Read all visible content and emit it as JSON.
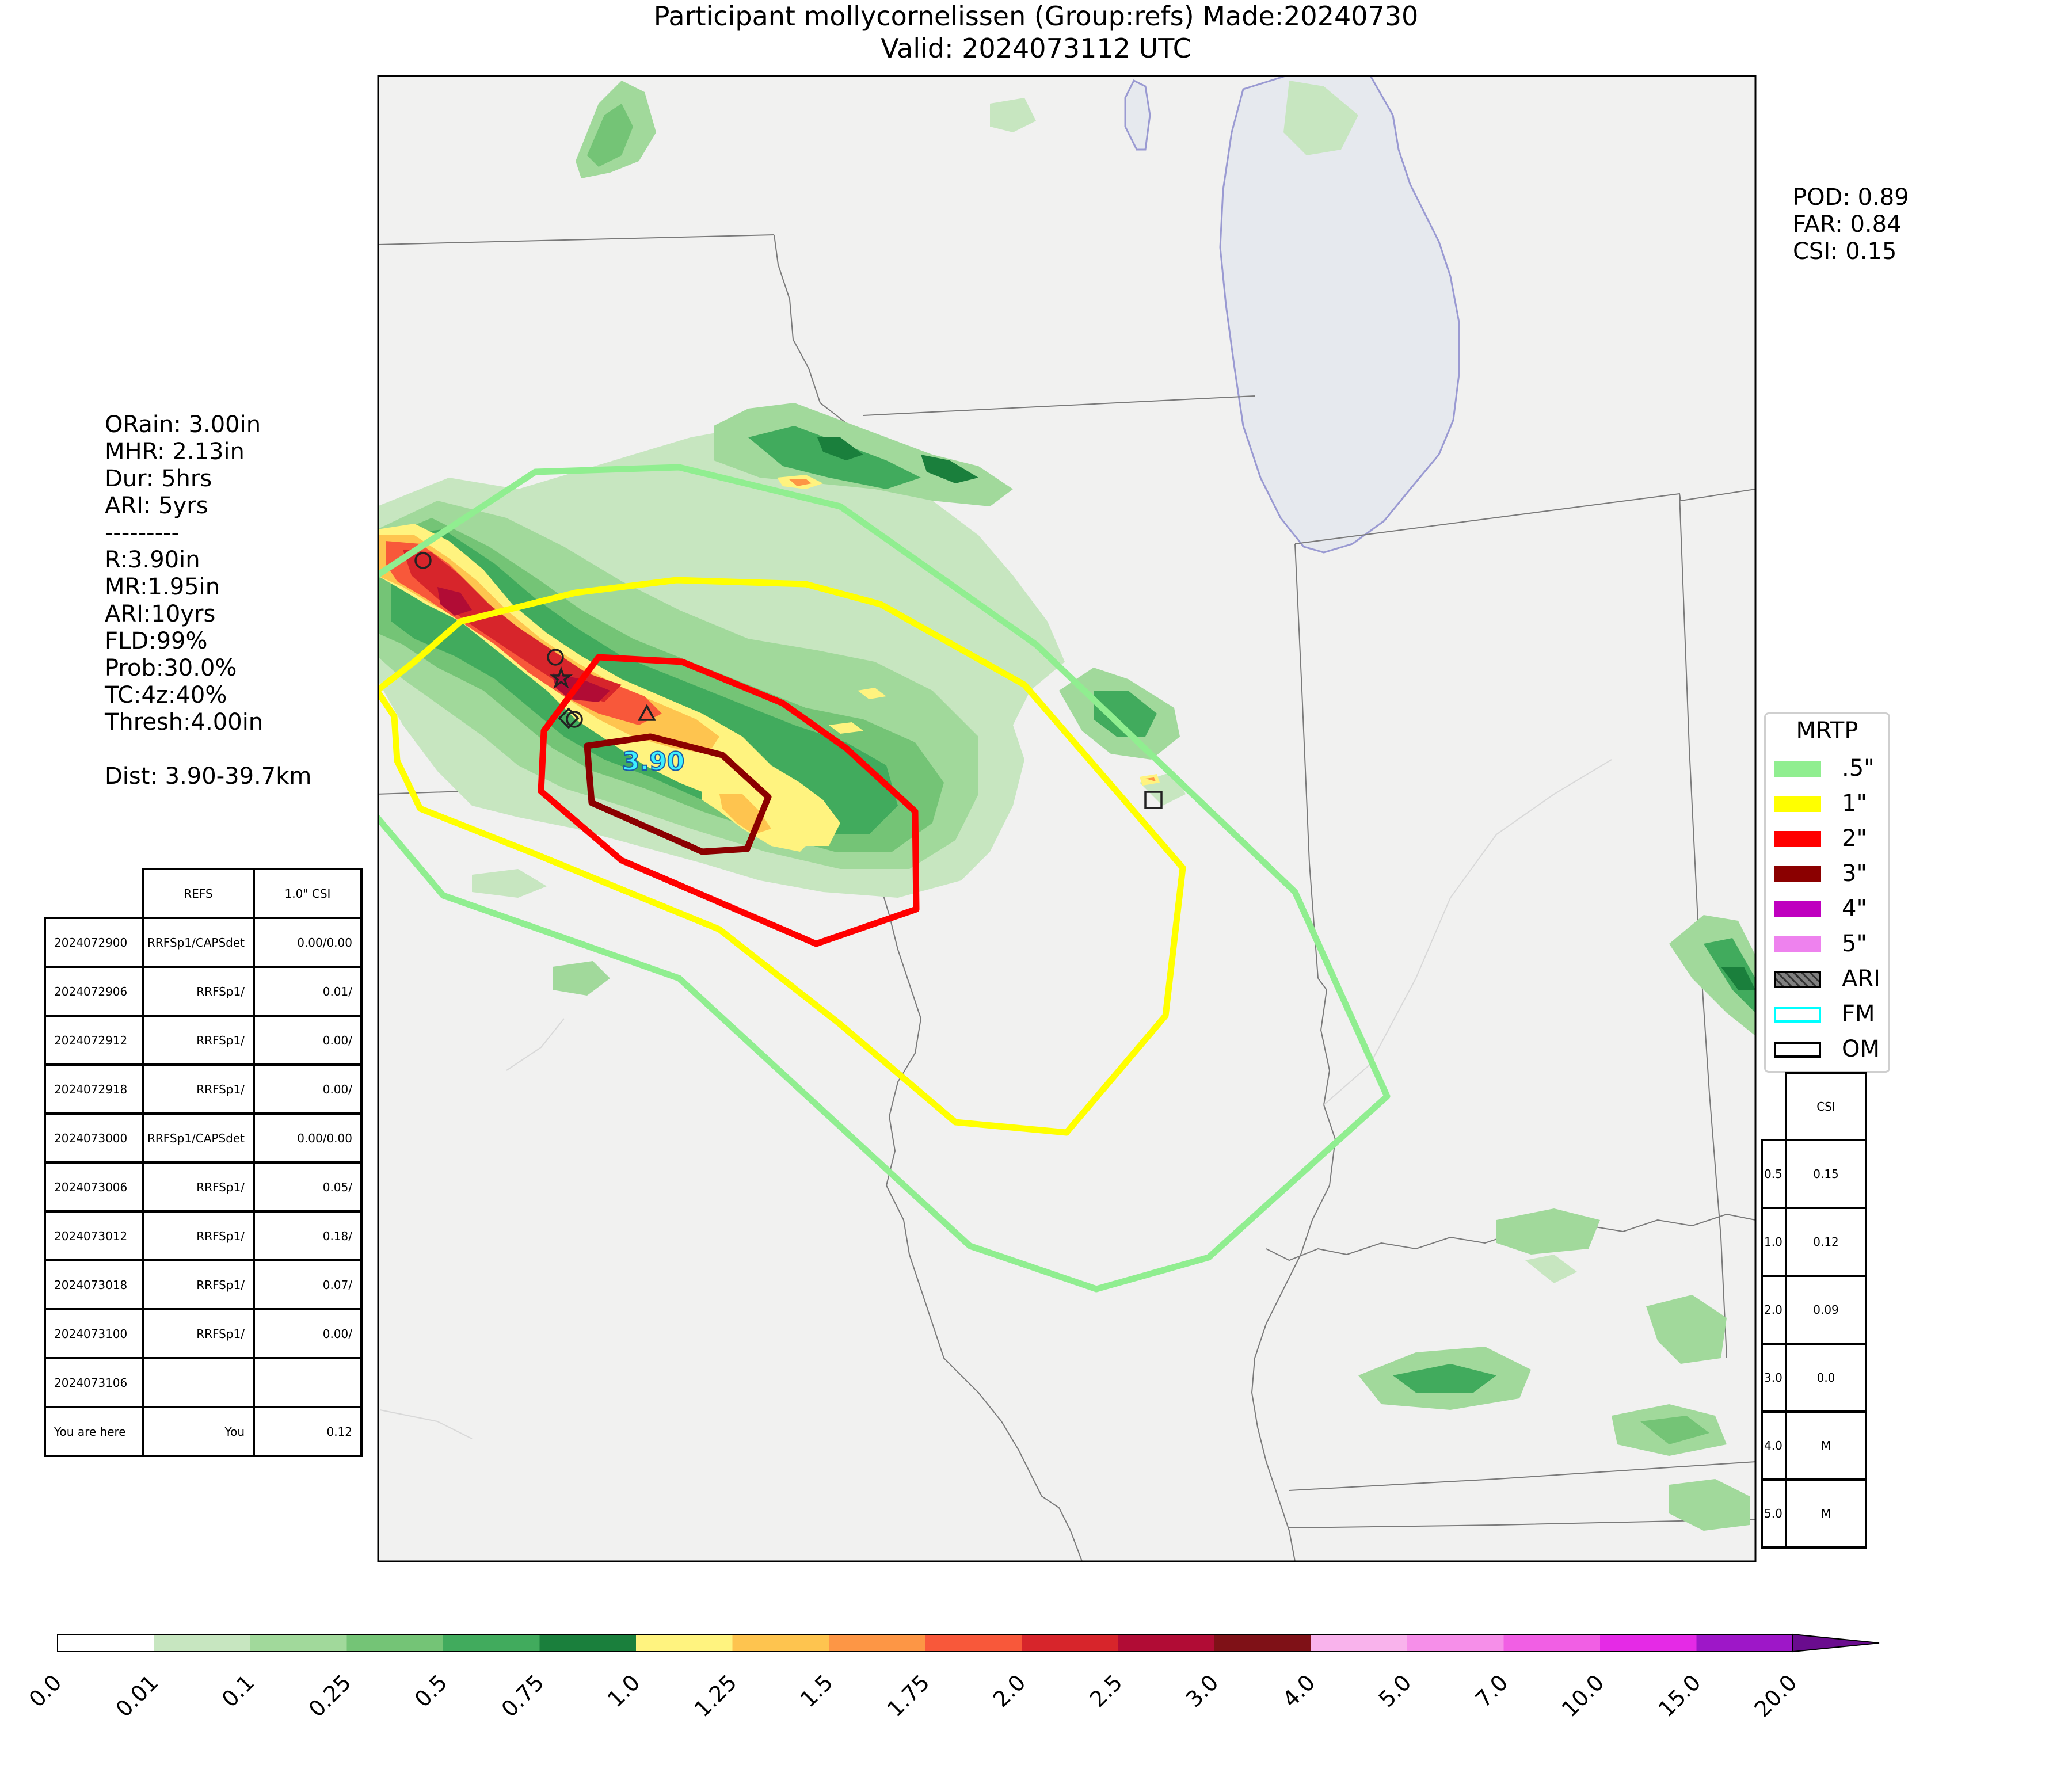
{
  "title": {
    "line1": "Participant mollycornelissen (Group:refs) Made:20240730",
    "line2": "Valid: 2024073112 UTC"
  },
  "scores": {
    "pod": "POD: 0.89",
    "far": "FAR: 0.84",
    "csi": "CSI: 0.15"
  },
  "info": [
    "ORain: 3.00in",
    "MHR: 2.13in",
    "Dur: 5hrs",
    "ARI: 5yrs",
    "---------",
    "R:3.90in",
    "MR:1.95in",
    "ARI:10yrs",
    "FLD:99%",
    "Prob:30.0%",
    "TC:4z:40%",
    "Thresh:4.00in",
    "",
    "Dist: 3.90-39.7km"
  ],
  "runs_table": {
    "header": [
      "REFS",
      "1.0\" CSI"
    ],
    "rows": [
      [
        "2024072900",
        "RRFSp1/CAPSdet",
        "0.00/0.00"
      ],
      [
        "2024072906",
        "RRFSp1/",
        "0.01/"
      ],
      [
        "2024072912",
        "RRFSp1/",
        "0.00/"
      ],
      [
        "2024072918",
        "RRFSp1/",
        "0.00/"
      ],
      [
        "2024073000",
        "RRFSp1/CAPSdet",
        "0.00/0.00"
      ],
      [
        "2024073006",
        "RRFSp1/",
        "0.05/"
      ],
      [
        "2024073012",
        "RRFSp1/",
        "0.18/"
      ],
      [
        "2024073018",
        "RRFSp1/",
        "0.07/"
      ],
      [
        "2024073100",
        "RRFSp1/",
        "0.00/"
      ],
      [
        "2024073106",
        "",
        ""
      ],
      [
        "You are here",
        "You",
        "0.12"
      ]
    ]
  },
  "csi_table": {
    "header": "CSI",
    "rows": [
      [
        "0.5",
        "0.15"
      ],
      [
        "1.0",
        "0.12"
      ],
      [
        "2.0",
        "0.09"
      ],
      [
        "3.0",
        "0.0"
      ],
      [
        "4.0",
        "M"
      ],
      [
        "5.0",
        "M"
      ]
    ]
  },
  "legend": {
    "title": "MRTP",
    "items": [
      {
        "label": ".5\"",
        "color": "#90ee90",
        "style": "fill"
      },
      {
        "label": "1\"",
        "color": "#ffff00",
        "style": "fill"
      },
      {
        "label": "2\"",
        "color": "#ff0000",
        "style": "fill"
      },
      {
        "label": "3\"",
        "color": "#8b0000",
        "style": "fill"
      },
      {
        "label": "4\"",
        "color": "#bf00bf",
        "style": "fill"
      },
      {
        "label": "5\"",
        "color": "#ee82ee",
        "style": "fill"
      },
      {
        "label": "ARI",
        "color": "#808080",
        "style": "hatch"
      },
      {
        "label": "FM",
        "color": "#00ffff",
        "style": "outline"
      },
      {
        "label": "OM",
        "color": "#000000",
        "style": "outline"
      }
    ]
  },
  "map": {
    "point_label": "3.90",
    "contour_colors": {
      "half": "#90ee90",
      "one": "#ffff00",
      "two": "#ff0000",
      "three": "#8b0000"
    },
    "land_color": "#f1f1f0",
    "lake_color": "#e6e9ee"
  },
  "colorbar": {
    "ticks": [
      "0.0",
      "0.01",
      "0.1",
      "0.25",
      "0.5",
      "0.75",
      "1.0",
      "1.25",
      "1.5",
      "1.75",
      "2.0",
      "2.5",
      "3.0",
      "4.0",
      "5.0",
      "7.0",
      "10.0",
      "15.0",
      "20.0"
    ],
    "colors": [
      "#ffffff",
      "#c7e6c0",
      "#a1d99b",
      "#74c476",
      "#41ab5d",
      "#1a7f3c",
      "#fff37f",
      "#fec44f",
      "#fd9645",
      "#f8583a",
      "#d7252b",
      "#b10c35",
      "#7f1117",
      "#f9b3ec",
      "#f68fe9",
      "#f15fe4",
      "#e52ae6",
      "#9e17c8"
    ],
    "extend_color": "#6a0c8e"
  }
}
